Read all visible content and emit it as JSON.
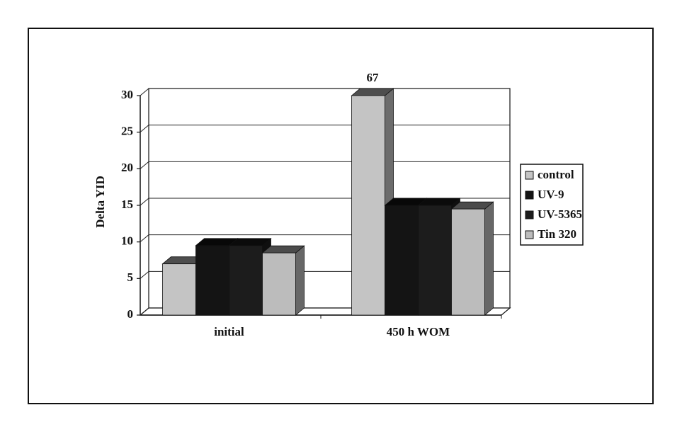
{
  "chart_data": {
    "type": "bar3d",
    "y_label": "Delta YID",
    "categories": [
      "initial",
      "450 h WOM"
    ],
    "series": [
      {
        "name": "control",
        "color": "#c4c4c4",
        "values": [
          7,
          67
        ]
      },
      {
        "name": "UV-9",
        "color": "#141414",
        "values": [
          9.5,
          15
        ]
      },
      {
        "name": "UV-5365",
        "color": "#1c1c1c",
        "values": [
          9.5,
          15
        ]
      },
      {
        "name": "Tin 320",
        "color": "#bcbcbc",
        "values": [
          8.5,
          14.5
        ]
      }
    ],
    "ylim": [
      0,
      30
    ],
    "yticks": [
      0,
      5,
      10,
      15,
      20,
      25,
      30
    ],
    "grid": true,
    "legend": "right"
  }
}
